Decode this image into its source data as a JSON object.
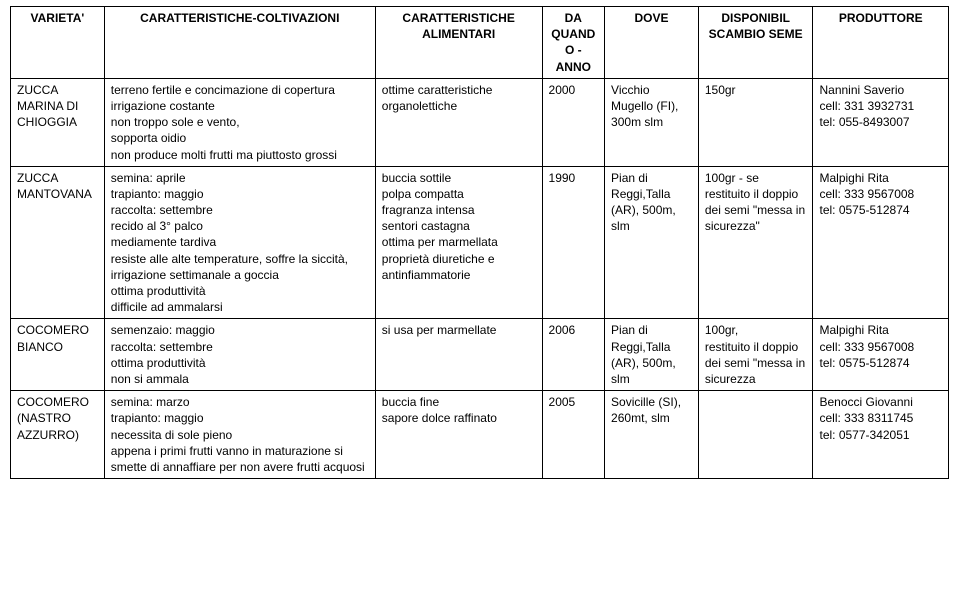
{
  "table": {
    "headers": {
      "variety": "VARIETA'",
      "cultivation": "CARATTERISTICHE-COLTIVAZIONI",
      "food": "CARATTERISTICHE ALIMENTARI",
      "year": "DA QUANDO - ANNO",
      "where": "DOVE",
      "avail": "DISPONIBIL SCAMBIO SEME",
      "producer": "PRODUTTORE"
    },
    "rows": [
      {
        "variety": "ZUCCA MARINA DI CHIOGGIA",
        "cultivation": "terreno fertile e concimazione di copertura\nirrigazione costante\nnon troppo sole e vento,\nsopporta oidio\nnon produce molti frutti ma piuttosto grossi",
        "food": "ottime caratteristiche organolettiche",
        "year": "2000",
        "where": "Vicchio Mugello (FI), 300m slm",
        "avail": "150gr",
        "producer": "Nannini Saverio\ncell: 331 3932731\ntel: 055-8493007"
      },
      {
        "variety": "ZUCCA MANTOVANA",
        "cultivation": "semina: aprile\ntrapianto: maggio\nraccolta: settembre\nrecido al 3° palco\nmediamente tardiva\nresiste alle alte temperature, soffre la siccità, irrigazione settimanale a goccia\nottima produttività\ndifficile ad ammalarsi",
        "food": "buccia sottile\npolpa compatta\nfragranza intensa\nsentori castagna\nottima per marmellata\nproprietà diuretiche e antinfiammatorie",
        "year": "1990",
        "where": "Pian di Reggi,Talla (AR), 500m, slm",
        "avail": "100gr - se restituito il doppio dei semi \"messa in sicurezza\"",
        "producer": "Malpighi Rita\ncell: 333 9567008\ntel: 0575-512874"
      },
      {
        "variety": "COCOMERO BIANCO",
        "cultivation": "semenzaio: maggio\nraccolta: settembre\nottima produttività\nnon si ammala",
        "food": "si usa per marmellate",
        "year": "2006",
        "where": "Pian di Reggi,Talla (AR), 500m, slm",
        "avail": "100gr,\nrestituito il doppio dei semi \"messa in sicurezza",
        "producer": "Malpighi Rita\ncell: 333 9567008\ntel: 0575-512874"
      },
      {
        "variety": "COCOMERO (NASTRO AZZURRO)",
        "cultivation": "semina: marzo\ntrapianto: maggio\nnecessita di sole pieno\nappena i primi frutti vanno in maturazione si smette di annaffiare per non avere frutti acquosi",
        "food": "buccia fine\nsapore dolce raffinato",
        "year": "2005",
        "where": "Sovicille (SI), 260mt, slm",
        "avail": "",
        "producer": "Benocci Giovanni\ncell: 333 8311745\ntel: 0577-342051"
      }
    ]
  }
}
